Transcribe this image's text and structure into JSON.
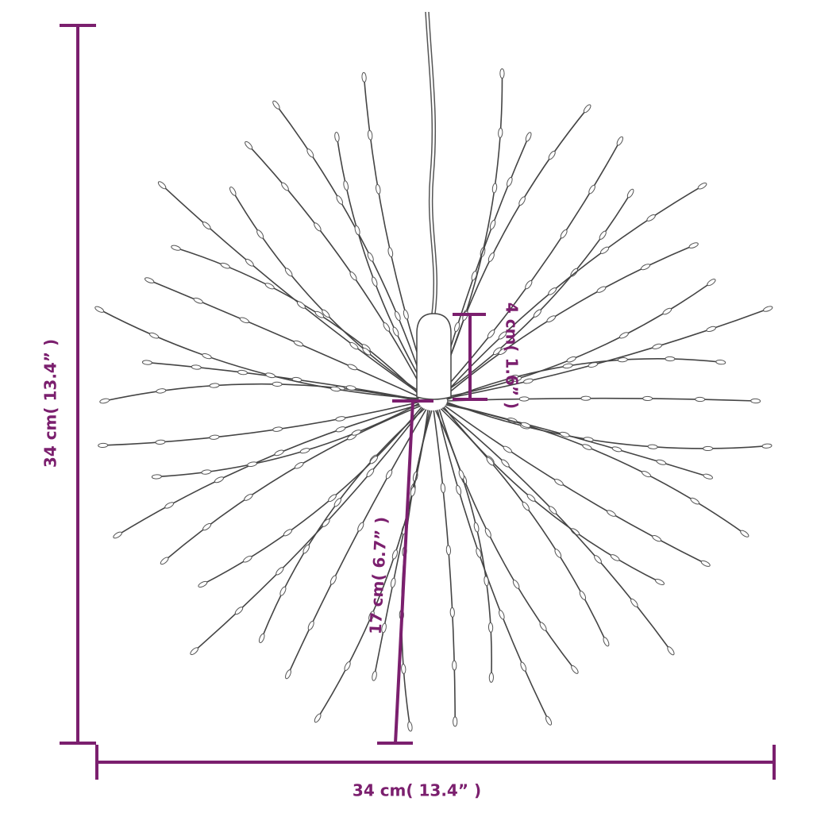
{
  "dimensions": {
    "height": "34 cm( 13.4” )",
    "width": "34 cm( 13.4” )",
    "cap_height": "4 cm( 1.6” )",
    "strand_length": "17 cm( 6.7” )"
  }
}
